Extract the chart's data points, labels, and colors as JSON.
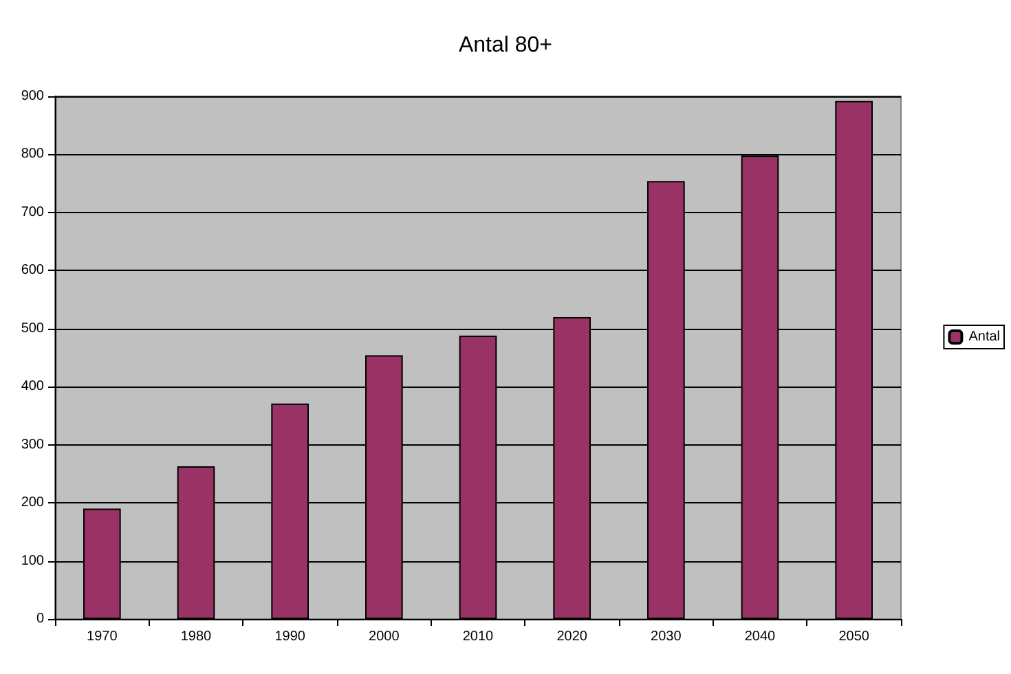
{
  "chart_data": {
    "type": "bar",
    "title": "Antal 80+",
    "categories": [
      "1970",
      "1980",
      "1990",
      "2000",
      "2010",
      "2020",
      "2030",
      "2040",
      "2050"
    ],
    "series": [
      {
        "name": "Antal",
        "color": "#993366",
        "values": [
          190,
          263,
          371,
          454,
          488,
          520,
          754,
          798,
          892
        ]
      }
    ],
    "ylim": [
      0,
      900
    ],
    "yticks": [
      0,
      100,
      200,
      300,
      400,
      500,
      600,
      700,
      800,
      900
    ],
    "grid": "y",
    "legend": "right"
  }
}
